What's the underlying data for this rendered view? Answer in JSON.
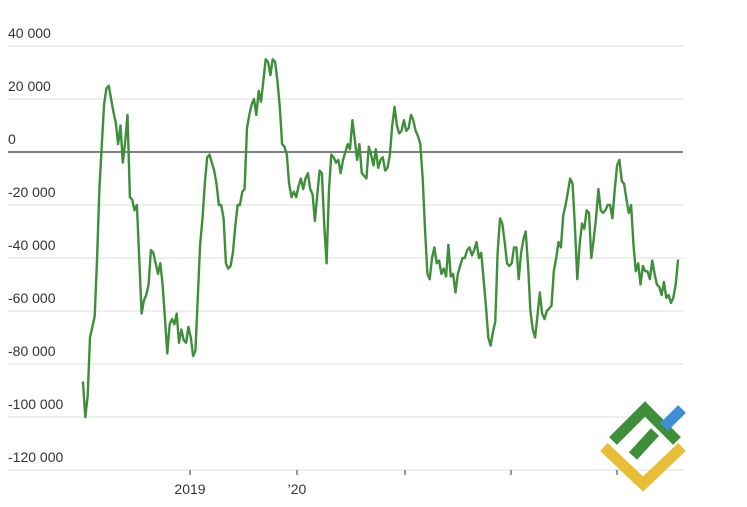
{
  "chart_data": {
    "type": "line",
    "title": "",
    "xlabel": "",
    "ylabel": "",
    "ylim": [
      -120000,
      40000
    ],
    "y_ticks": [
      40000,
      20000,
      0,
      -20000,
      -40000,
      -60000,
      -80000,
      -100000,
      -120000
    ],
    "y_tick_labels": [
      "40 000",
      "20 000",
      "0",
      "-20 000",
      "-40 000",
      "-60 000",
      "-80 000",
      "-100 000",
      "-120 000"
    ],
    "x_ticks": [
      "2019",
      "’20",
      "",
      "",
      ""
    ],
    "grid": true,
    "legend": "none",
    "colors": {
      "line": "#3f8f3a",
      "grid": "#dcdcdc",
      "zero_line": "#333333",
      "text": "#333333"
    },
    "series": [
      {
        "values": [
          -87000,
          -100000,
          -92000,
          -70000,
          -66000,
          -62000,
          -40000,
          -14000,
          2000,
          18000,
          24000,
          25000,
          20000,
          15000,
          11000,
          3000,
          10000,
          -4000,
          4000,
          14000,
          -17000,
          -18000,
          -22000,
          -20000,
          -40000,
          -61000,
          -56000,
          -54000,
          -50000,
          -37000,
          -38000,
          -42000,
          -46000,
          -42000,
          -50000,
          -63000,
          -76000,
          -65000,
          -63000,
          -65000,
          -61000,
          -72000,
          -67000,
          -71000,
          -72000,
          -66000,
          -70000,
          -77000,
          -75000,
          -55000,
          -35000,
          -25000,
          -12000,
          -2000,
          -1000,
          -4000,
          -7000,
          -12000,
          -20000,
          -20000,
          -25000,
          -42000,
          -44000,
          -43000,
          -38000,
          -28000,
          -20000,
          -20000,
          -15000,
          -14000,
          9000,
          14000,
          18000,
          20000,
          14000,
          23000,
          19000,
          27000,
          35000,
          34000,
          29000,
          35000,
          34000,
          27000,
          17000,
          3000,
          2000,
          -1000,
          -12000,
          -17000,
          -15000,
          -17000,
          -13000,
          -10000,
          -14000,
          -10000,
          -8000,
          -14000,
          -16000,
          -26000,
          -16000,
          -7000,
          -8000,
          -28000,
          -42000,
          -14000,
          -1000,
          -2000,
          -4000,
          -3000,
          -8000,
          -3000,
          0,
          3000,
          1000,
          12000,
          5000,
          -3000,
          3000,
          -8000,
          -9000,
          -10000,
          2000,
          -1000,
          -5000,
          1000,
          -6000,
          -3000,
          -2000,
          -7000,
          -6000,
          -1000,
          10000,
          17000,
          10000,
          7000,
          8000,
          12000,
          8000,
          9000,
          14000,
          12000,
          8000,
          6000,
          3000,
          -10000,
          -29000,
          -46000,
          -48000,
          -40000,
          -36000,
          -42000,
          -41000,
          -46000,
          -44000,
          -47000,
          -35000,
          -47000,
          -46000,
          -53000,
          -46000,
          -43000,
          -40000,
          -40000,
          -37000,
          -36000,
          -39000,
          -37000,
          -34000,
          -40000,
          -38000,
          -48000,
          -58000,
          -70000,
          -73000,
          -68000,
          -64000,
          -38000,
          -25000,
          -27000,
          -34000,
          -42000,
          -43000,
          -42000,
          -36000,
          -36000,
          -48000,
          -38000,
          -33000,
          -30000,
          -43000,
          -60000,
          -67000,
          -70000,
          -62000,
          -53000,
          -61000,
          -63000,
          -60000,
          -59000,
          -58000,
          -45000,
          -40000,
          -34000,
          -36000,
          -24000,
          -20000,
          -15000,
          -10000,
          -12000,
          -28000,
          -48000,
          -35000,
          -27000,
          -29000,
          -22000,
          -23000,
          -40000,
          -33000,
          -25000,
          -14000,
          -22000,
          -23000,
          -22000,
          -20000,
          -20000,
          -25000,
          -14000,
          -5000,
          -3000,
          -11000,
          -12000,
          -18000,
          -23000,
          -20000,
          -35000,
          -45000,
          -42000,
          -50000,
          -43000,
          -45000,
          -45000,
          -48000,
          -41000,
          -46000,
          -50000,
          -51000,
          -54000,
          -49000,
          -55000,
          -54000,
          -57000,
          -55000,
          -50000,
          -41000
        ]
      }
    ]
  },
  "watermark": {
    "name": "logo",
    "colors": {
      "green": "#3f8f3a",
      "blue": "#3d8fd6",
      "yellow": "#e8be36"
    }
  }
}
